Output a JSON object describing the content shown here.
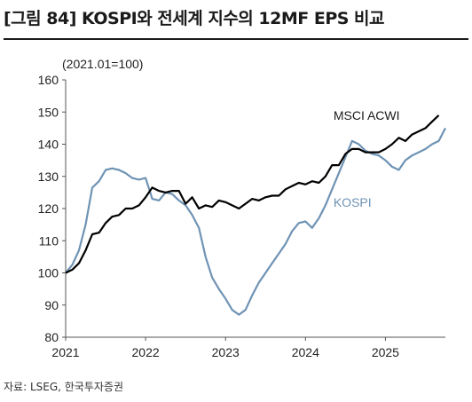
{
  "title": "[그림 84] KOSPI와 전세계 지수의 12MF EPS 비교",
  "source": "자료: LSEG, 한국투자증권",
  "chart_data": {
    "type": "line",
    "unit_label": "(2021.01=100)",
    "ylim": [
      80,
      160
    ],
    "yticks": [
      "160",
      "150",
      "140",
      "130",
      "120",
      "110",
      "100",
      "90",
      "80"
    ],
    "ytick_values": [
      160,
      150,
      140,
      130,
      120,
      110,
      100,
      90,
      80
    ],
    "xlim": [
      2021.0,
      2025.75
    ],
    "xticks": [
      "2021",
      "2022",
      "2023",
      "2024",
      "2025"
    ],
    "xtick_values": [
      2021,
      2022,
      2023,
      2024,
      2025
    ],
    "grid": false,
    "series": [
      {
        "name": "MSCI ACWI",
        "color": "#000000",
        "points": [
          [
            2021.0,
            100
          ],
          [
            2021.083,
            101
          ],
          [
            2021.167,
            103
          ],
          [
            2021.25,
            107
          ],
          [
            2021.333,
            112
          ],
          [
            2021.417,
            112.5
          ],
          [
            2021.5,
            115.5
          ],
          [
            2021.583,
            117.5
          ],
          [
            2021.667,
            118
          ],
          [
            2021.75,
            120
          ],
          [
            2021.833,
            120
          ],
          [
            2021.917,
            121
          ],
          [
            2022.0,
            123.5
          ],
          [
            2022.083,
            126.5
          ],
          [
            2022.167,
            125.5
          ],
          [
            2022.25,
            125
          ],
          [
            2022.333,
            125.5
          ],
          [
            2022.417,
            125.5
          ],
          [
            2022.5,
            121.5
          ],
          [
            2022.583,
            123.5
          ],
          [
            2022.667,
            120
          ],
          [
            2022.75,
            121
          ],
          [
            2022.833,
            120.5
          ],
          [
            2022.917,
            122.5
          ],
          [
            2023.0,
            122
          ],
          [
            2023.083,
            121
          ],
          [
            2023.167,
            120
          ],
          [
            2023.25,
            121.5
          ],
          [
            2023.333,
            123
          ],
          [
            2023.417,
            122.5
          ],
          [
            2023.5,
            123.5
          ],
          [
            2023.583,
            124
          ],
          [
            2023.667,
            124
          ],
          [
            2023.75,
            126
          ],
          [
            2023.833,
            127
          ],
          [
            2023.917,
            128
          ],
          [
            2024.0,
            127.5
          ],
          [
            2024.083,
            128.5
          ],
          [
            2024.167,
            128
          ],
          [
            2024.25,
            130
          ],
          [
            2024.333,
            133.5
          ],
          [
            2024.417,
            133.5
          ],
          [
            2024.5,
            137
          ],
          [
            2024.583,
            138.5
          ],
          [
            2024.667,
            138.5
          ],
          [
            2024.75,
            137.5
          ],
          [
            2024.833,
            137.5
          ],
          [
            2024.917,
            137.5
          ],
          [
            2025.0,
            138.5
          ],
          [
            2025.083,
            140
          ],
          [
            2025.167,
            142
          ],
          [
            2025.25,
            141
          ],
          [
            2025.333,
            143
          ],
          [
            2025.417,
            144
          ],
          [
            2025.5,
            145
          ],
          [
            2025.583,
            147
          ],
          [
            2025.667,
            149
          ]
        ]
      },
      {
        "name": "KOSPI",
        "color": "#6f93b4",
        "points": [
          [
            2021.0,
            100
          ],
          [
            2021.083,
            102.5
          ],
          [
            2021.167,
            107
          ],
          [
            2021.25,
            115
          ],
          [
            2021.333,
            126.5
          ],
          [
            2021.417,
            128.5
          ],
          [
            2021.5,
            132
          ],
          [
            2021.583,
            132.5
          ],
          [
            2021.667,
            132
          ],
          [
            2021.75,
            131
          ],
          [
            2021.833,
            129.5
          ],
          [
            2021.917,
            129
          ],
          [
            2022.0,
            129.5
          ],
          [
            2022.083,
            123
          ],
          [
            2022.167,
            122.5
          ],
          [
            2022.25,
            125
          ],
          [
            2022.333,
            124.5
          ],
          [
            2022.417,
            122.5
          ],
          [
            2022.5,
            121
          ],
          [
            2022.583,
            118
          ],
          [
            2022.667,
            114
          ],
          [
            2022.75,
            105
          ],
          [
            2022.833,
            98.5
          ],
          [
            2022.917,
            95
          ],
          [
            2023.0,
            92
          ],
          [
            2023.083,
            88.5
          ],
          [
            2023.167,
            87
          ],
          [
            2023.25,
            88.5
          ],
          [
            2023.333,
            93
          ],
          [
            2023.417,
            97
          ],
          [
            2023.5,
            100
          ],
          [
            2023.583,
            103
          ],
          [
            2023.667,
            106
          ],
          [
            2023.75,
            109
          ],
          [
            2023.833,
            113
          ],
          [
            2023.917,
            115.5
          ],
          [
            2024.0,
            116
          ],
          [
            2024.083,
            114
          ],
          [
            2024.167,
            117
          ],
          [
            2024.25,
            121
          ],
          [
            2024.333,
            126
          ],
          [
            2024.417,
            131
          ],
          [
            2024.5,
            136
          ],
          [
            2024.583,
            141
          ],
          [
            2024.667,
            140
          ],
          [
            2024.75,
            138
          ],
          [
            2024.833,
            137
          ],
          [
            2024.917,
            136.5
          ],
          [
            2025.0,
            135
          ],
          [
            2025.083,
            133
          ],
          [
            2025.167,
            132
          ],
          [
            2025.25,
            135
          ],
          [
            2025.333,
            136.5
          ],
          [
            2025.417,
            137.5
          ],
          [
            2025.5,
            138.5
          ],
          [
            2025.583,
            140
          ],
          [
            2025.667,
            141
          ],
          [
            2025.75,
            145
          ]
        ]
      }
    ],
    "annotations": [
      {
        "series": "MSCI ACWI",
        "text": "MSCI ACWI",
        "at": [
          2024.35,
          149
        ],
        "color": "#1a1a1a"
      },
      {
        "series": "KOSPI",
        "text": "KOSPI",
        "at": [
          2024.35,
          122
        ],
        "color": "#6f93b4"
      }
    ]
  }
}
